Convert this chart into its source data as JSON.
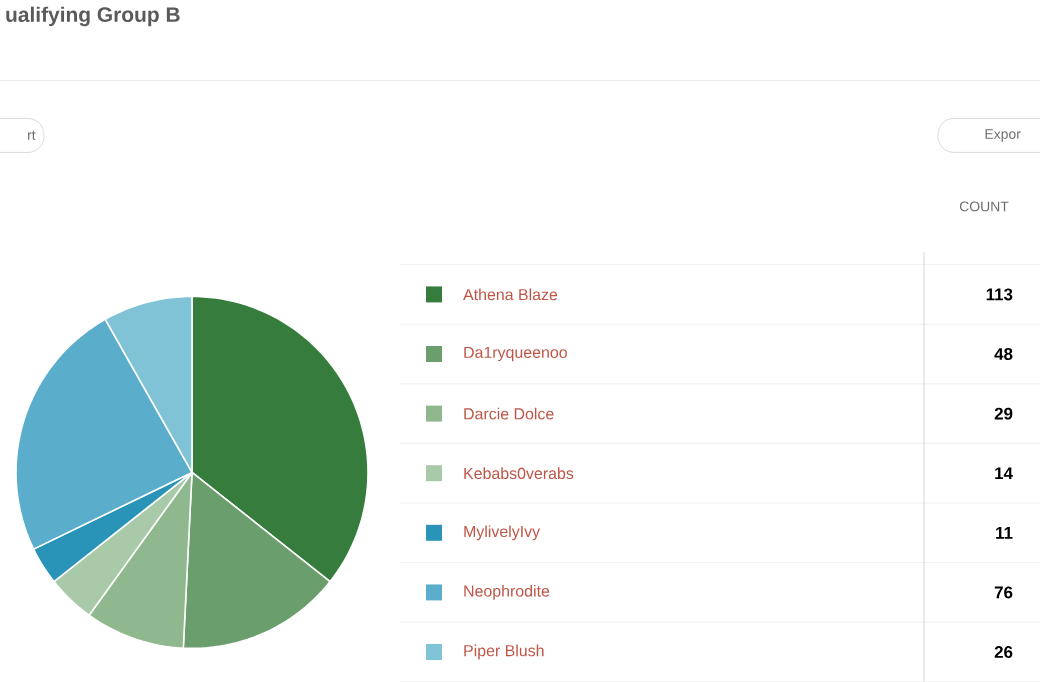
{
  "chart_data": {
    "type": "pie",
    "title": "ualifying Group B",
    "categories": [
      "Athena Blaze",
      "Da1ryqueenoo",
      "Darcie Dolce",
      "Kebabs0verabs",
      "MylivelyIvy",
      "Neophrodite",
      "Piper Blush"
    ],
    "values": [
      113,
      48,
      29,
      14,
      11,
      76,
      26
    ],
    "colors": [
      "#367c3c",
      "#6a9f6d",
      "#8fb88f",
      "#a9caa8",
      "#2a93b8",
      "#5aaecc",
      "#80c3d6"
    ],
    "legend": "right",
    "data_labels": true,
    "annotations": [
      "rt",
      "Expor",
      "COUNT"
    ]
  }
}
